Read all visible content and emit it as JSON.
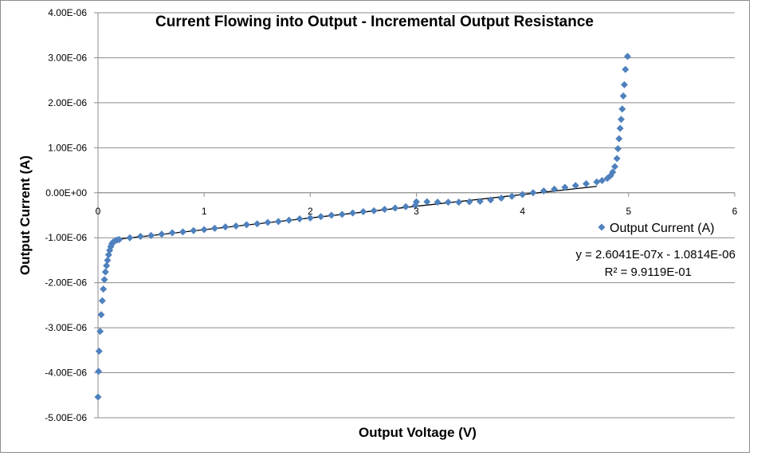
{
  "chart_data": {
    "type": "scatter",
    "title": "Current Flowing into Output - Incremental Output Resistance",
    "xlabel": "Output Voltage (V)",
    "ylabel": "Output Current (A)",
    "xlim": [
      0,
      6
    ],
    "ylim": [
      -5e-06,
      4e-06
    ],
    "x_ticks": [
      "0",
      "1",
      "2",
      "3",
      "4",
      "5",
      "6"
    ],
    "y_ticks": [
      "-5.00E-06",
      "-4.00E-06",
      "-3.00E-06",
      "-2.00E-06",
      "-1.00E-06",
      "0.00E+00",
      "1.00E-06",
      "2.00E-06",
      "3.00E-06",
      "4.00E-06"
    ],
    "grid": "horizontal",
    "legend_position": "right",
    "marker_color": "#4f81bd",
    "series": [
      {
        "name": "Output Current (A)",
        "marker": "diamond",
        "points": [
          [
            0.0,
            -4.54e-06
          ],
          [
            0.005,
            -3.97e-06
          ],
          [
            0.01,
            -3.52e-06
          ],
          [
            0.02,
            -3.08e-06
          ],
          [
            0.03,
            -2.71e-06
          ],
          [
            0.04,
            -2.4e-06
          ],
          [
            0.05,
            -2.14e-06
          ],
          [
            0.06,
            -1.93e-06
          ],
          [
            0.07,
            -1.76e-06
          ],
          [
            0.08,
            -1.62e-06
          ],
          [
            0.09,
            -1.5e-06
          ],
          [
            0.1,
            -1.38e-06
          ],
          [
            0.11,
            -1.28e-06
          ],
          [
            0.12,
            -1.2e-06
          ],
          [
            0.13,
            -1.14e-06
          ],
          [
            0.14,
            -1.1e-06
          ],
          [
            0.16,
            -1.07e-06
          ],
          [
            0.18,
            -1.05e-06
          ],
          [
            0.2,
            -1.04e-06
          ],
          [
            0.3,
            -1e-06
          ],
          [
            0.4,
            -9.7e-07
          ],
          [
            0.5,
            -9.5e-07
          ],
          [
            0.6,
            -9.2e-07
          ],
          [
            0.7,
            -8.9e-07
          ],
          [
            0.8,
            -8.7e-07
          ],
          [
            0.9,
            -8.4e-07
          ],
          [
            1.0,
            -8.2e-07
          ],
          [
            1.1,
            -7.9e-07
          ],
          [
            1.2,
            -7.6e-07
          ],
          [
            1.3,
            -7.4e-07
          ],
          [
            1.4,
            -7.1e-07
          ],
          [
            1.5,
            -6.9e-07
          ],
          [
            1.6,
            -6.6e-07
          ],
          [
            1.7,
            -6.4e-07
          ],
          [
            1.8,
            -6.1e-07
          ],
          [
            1.9,
            -5.8e-07
          ],
          [
            2.0,
            -5.6e-07
          ],
          [
            2.1,
            -5.3e-07
          ],
          [
            2.2,
            -5e-07
          ],
          [
            2.3,
            -4.8e-07
          ],
          [
            2.4,
            -4.5e-07
          ],
          [
            2.5,
            -4.2e-07
          ],
          [
            2.6,
            -4e-07
          ],
          [
            2.7,
            -3.7e-07
          ],
          [
            2.8,
            -3.4e-07
          ],
          [
            2.9,
            -3.1e-07
          ],
          [
            2.99,
            -2.8e-07
          ],
          [
            3.0,
            -2e-07
          ],
          [
            3.1,
            -2e-07
          ],
          [
            3.2,
            -2.1e-07
          ],
          [
            3.3,
            -2.1e-07
          ],
          [
            3.4,
            -2.1e-07
          ],
          [
            3.5,
            -2e-07
          ],
          [
            3.6,
            -1.9e-07
          ],
          [
            3.7,
            -1.6e-07
          ],
          [
            3.8,
            -1.2e-07
          ],
          [
            3.9,
            -8e-08
          ],
          [
            4.0,
            -4e-08
          ],
          [
            4.1,
            0.0
          ],
          [
            4.2,
            4e-08
          ],
          [
            4.3,
            8e-08
          ],
          [
            4.4,
            1.2e-07
          ],
          [
            4.5,
            1.6e-07
          ],
          [
            4.6,
            2e-07
          ],
          [
            4.7,
            2.4e-07
          ],
          [
            4.75,
            2.7e-07
          ],
          [
            4.8,
            3.2e-07
          ],
          [
            4.83,
            3.8e-07
          ],
          [
            4.85,
            4.6e-07
          ],
          [
            4.87,
            5.8e-07
          ],
          [
            4.89,
            7.6e-07
          ],
          [
            4.9,
            9.8e-07
          ],
          [
            4.91,
            1.2e-06
          ],
          [
            4.92,
            1.43e-06
          ],
          [
            4.93,
            1.63e-06
          ],
          [
            4.94,
            1.86e-06
          ],
          [
            4.95,
            2.15e-06
          ],
          [
            4.96,
            2.4e-06
          ],
          [
            4.97,
            2.74e-06
          ],
          [
            4.99,
            3.03e-06
          ]
        ]
      }
    ],
    "trendline": {
      "type": "linear",
      "x_range": [
        0.2,
        4.7
      ],
      "color": "#000000",
      "equation": "y = 2.6041E-07x - 1.0814E-06",
      "r_squared": "R² = 9.9119E-01"
    }
  }
}
